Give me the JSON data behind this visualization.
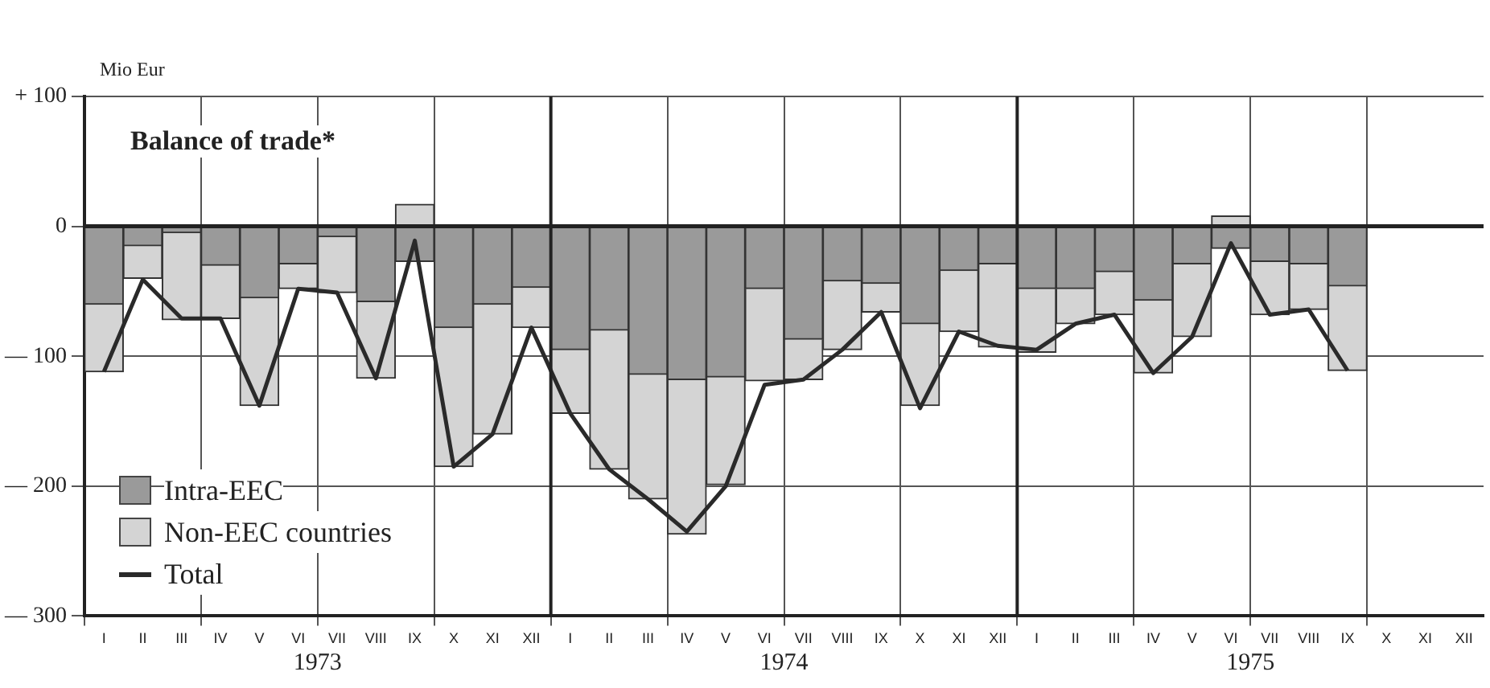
{
  "chart_data": {
    "type": "bar",
    "stacked": true,
    "title": "Balance of trade*",
    "ylabel": "Mio Eur",
    "categories": [
      "I",
      "II",
      "III",
      "IV",
      "V",
      "VI",
      "VII",
      "VIII",
      "IX",
      "X",
      "XI",
      "XII",
      "I",
      "II",
      "III",
      "IV",
      "V",
      "VI",
      "VII",
      "VIII",
      "IX",
      "X",
      "XI",
      "XII",
      "I",
      "II",
      "III",
      "IV",
      "V",
      "VI",
      "VII",
      "VIII",
      "IX",
      "X",
      "XI",
      "XII"
    ],
    "series": [
      {
        "name": "Intra-EEC",
        "color": "#9a9a9a",
        "values": [
          -60,
          -15,
          -5,
          -30,
          -55,
          -29,
          -8,
          -58,
          -27,
          -78,
          -60,
          -47,
          -95,
          -80,
          -114,
          -118,
          -116,
          -48,
          -87,
          -42,
          -44,
          -75,
          -34,
          -29,
          -48,
          -48,
          -35,
          -57,
          -29,
          -17,
          -27,
          -29,
          -46,
          null,
          null,
          null
        ]
      },
      {
        "name": "Non-EEC countries",
        "color": "#d4d4d4",
        "values": [
          -52,
          -25,
          -67,
          -41,
          -83,
          -19,
          -43,
          -59,
          17,
          -107,
          -100,
          -31,
          -49,
          -107,
          -96,
          -119,
          -83,
          -71,
          -31,
          -53,
          -22,
          -63,
          -47,
          -64,
          -49,
          -27,
          -33,
          -56,
          -56,
          8,
          -41,
          -35,
          -65,
          null,
          null,
          null
        ]
      },
      {
        "name": "Total",
        "type": "line",
        "color": "#2a2a2a",
        "values": [
          -112,
          -41,
          -71,
          -71,
          -138,
          -48,
          -51,
          -117,
          -11,
          -185,
          -160,
          -78,
          -144,
          -187,
          -210,
          -235,
          -200,
          -122,
          -118,
          -95,
          -66,
          -140,
          -81,
          -92,
          -95,
          -75,
          -68,
          -113,
          -85,
          -13,
          -68,
          -64,
          -111,
          null,
          null,
          null
        ]
      }
    ],
    "ylim": [
      -300,
      100
    ],
    "yticks": [
      {
        "value": 100,
        "label": "+ 100"
      },
      0,
      {
        "value": -100,
        "label": "— 100"
      },
      {
        "value": -200,
        "label": "— 200"
      },
      {
        "value": -300,
        "label": "— 300"
      }
    ],
    "annotations": [
      "1973",
      "1974",
      "1975"
    ],
    "grid": true,
    "legend": "bottom left",
    "marker": "none",
    "line_style": "solid"
  }
}
